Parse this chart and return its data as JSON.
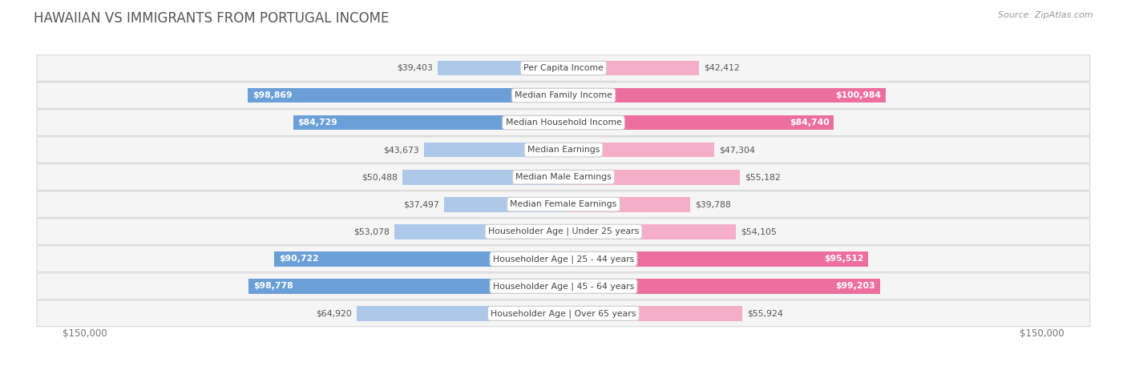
{
  "title": "HAWAIIAN VS IMMIGRANTS FROM PORTUGAL INCOME",
  "source": "Source: ZipAtlas.com",
  "categories": [
    "Per Capita Income",
    "Median Family Income",
    "Median Household Income",
    "Median Earnings",
    "Median Male Earnings",
    "Median Female Earnings",
    "Householder Age | Under 25 years",
    "Householder Age | 25 - 44 years",
    "Householder Age | 45 - 64 years",
    "Householder Age | Over 65 years"
  ],
  "hawaiian_values": [
    39403,
    98869,
    84729,
    43673,
    50488,
    37497,
    53078,
    90722,
    98778,
    64920
  ],
  "portugal_values": [
    42412,
    100984,
    84740,
    47304,
    55182,
    39788,
    54105,
    95512,
    99203,
    55924
  ],
  "hawaiian_labels": [
    "$39,403",
    "$98,869",
    "$84,729",
    "$43,673",
    "$50,488",
    "$37,497",
    "$53,078",
    "$90,722",
    "$98,778",
    "$64,920"
  ],
  "portugal_labels": [
    "$42,412",
    "$100,984",
    "$84,740",
    "$47,304",
    "$55,182",
    "$39,788",
    "$54,105",
    "$95,512",
    "$99,203",
    "$55,924"
  ],
  "hawaiian_color_light": "#adc8e8",
  "hawaiian_color_dark": "#6a9fd8",
  "portugal_color_light": "#f5aec8",
  "portugal_color_dark": "#ed6fa0",
  "max_value": 150000,
  "background_color": "#ffffff",
  "row_bg_color": "#f5f5f5",
  "label_threshold": 80000,
  "title_color": "#555555",
  "source_color": "#999999",
  "axis_label_color": "#777777"
}
